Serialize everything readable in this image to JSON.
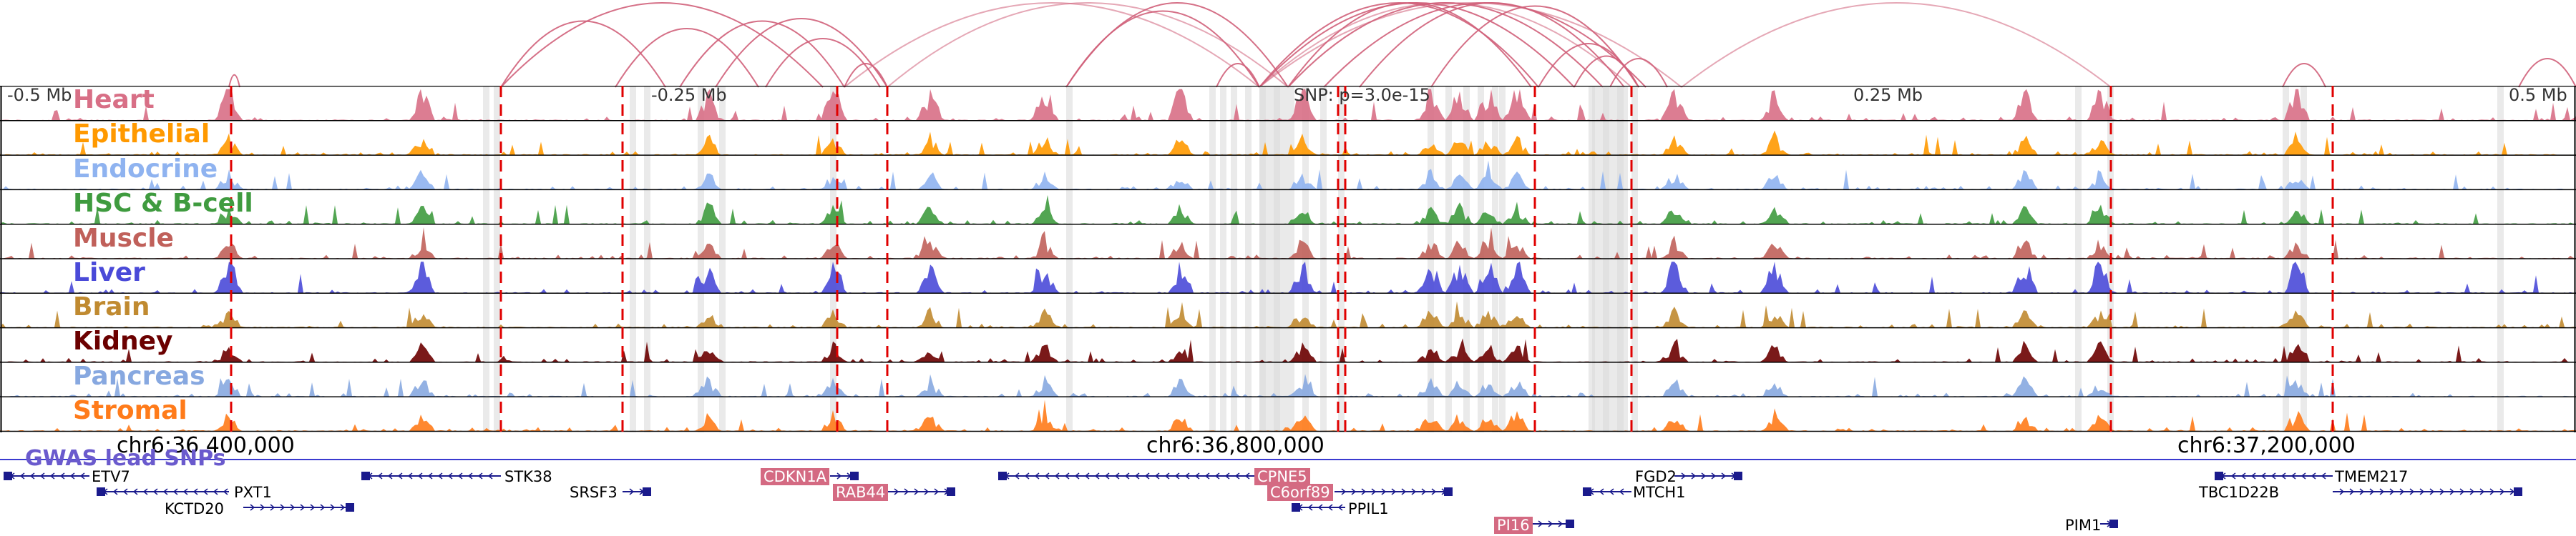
{
  "tracks": [
    {
      "label": "Heart",
      "color": "#d86f86"
    },
    {
      "label": "Epithelial",
      "color": "#ff9900"
    },
    {
      "label": "Endocrine",
      "color": "#8fb3f0"
    },
    {
      "label": "HSC & B-cell",
      "color": "#3f9b3f"
    },
    {
      "label": "Muscle",
      "color": "#c0605a"
    },
    {
      "label": "Liver",
      "color": "#4a4ad8"
    },
    {
      "label": "Brain",
      "color": "#c08a30"
    },
    {
      "label": "Kidney",
      "color": "#6b0000"
    },
    {
      "label": "Pancreas",
      "color": "#87a8e0"
    },
    {
      "label": "Stromal",
      "color": "#ff7b1a"
    }
  ],
  "ticks": {
    "minus_05": "-0.5 Mb",
    "minus_025": "-0.25 Mb",
    "snp": "SNP: p=3.0e-15",
    "plus_025": "0.25 Mb",
    "plus_05": "0.5 Mb"
  },
  "coords": {
    "c1": "chr6:36,400,000",
    "c2": "chr6:36,800,000",
    "c3": "chr6:37,200,000"
  },
  "gwas_label": "GWAS lead SNPs",
  "genes": {
    "etv7": "ETV7",
    "pxt1": "PXT1",
    "kctd20": "KCTD20",
    "stk38": "STK38",
    "srsf3": "SRSF3",
    "cdkn1a": "CDKN1A",
    "rab44": "RAB44",
    "cpne5": "CPNE5",
    "c6orf89": "C6orf89",
    "ppil1": "PPIL1",
    "pi16": "PI16",
    "fgd2": "FGD2",
    "mtch1": "MTCH1",
    "pim1": "PIM1",
    "tmem217": "TMEM217",
    "tbc1d22b": "TBC1D22B"
  },
  "colors": {
    "loop": "#d0607a",
    "sig": "#e00000",
    "shade": "#d8d8d8",
    "gene": "#1a1a8c",
    "gwas_line": "#3a3ad0"
  }
}
